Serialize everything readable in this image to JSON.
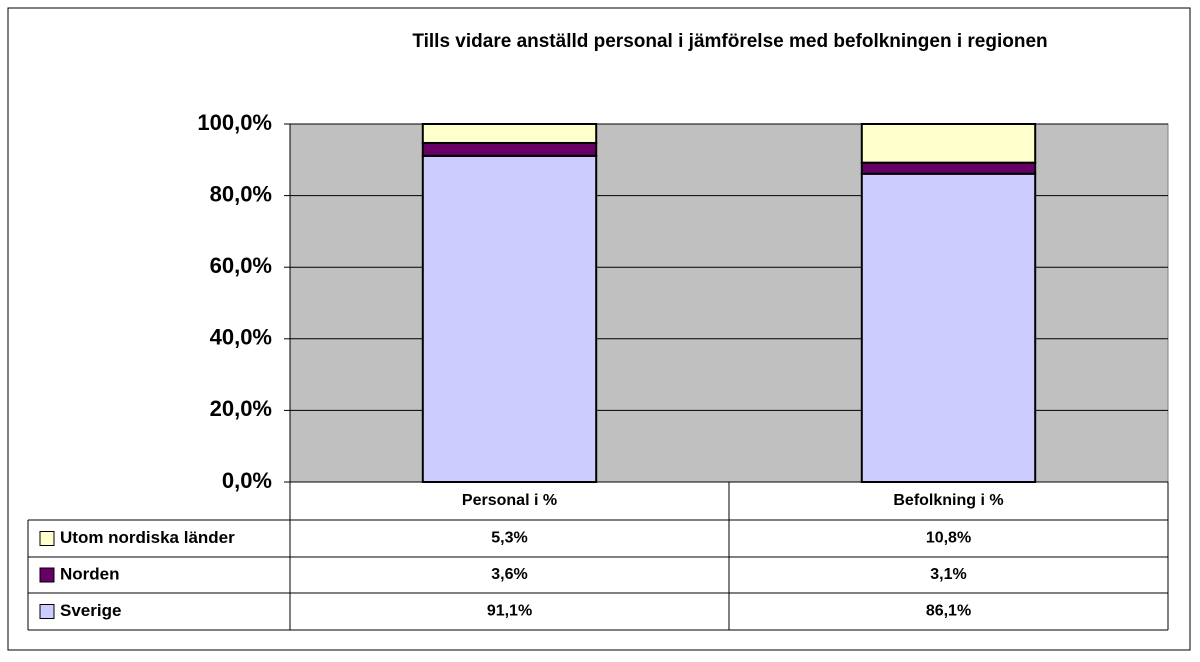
{
  "chart_data": {
    "type": "bar",
    "stacked": true,
    "title": "Tills vidare anställd personal i jämförelse med befolkningen i regionen",
    "categories": [
      "Personal i %",
      "Befolkning i %"
    ],
    "series": [
      {
        "name": "Sverige",
        "color": "#ccccff",
        "values": [
          91.1,
          86.1
        ],
        "value_labels": [
          "91,1%",
          "86,1%"
        ]
      },
      {
        "name": "Norden",
        "color": "#660066",
        "values": [
          3.6,
          3.1
        ],
        "value_labels": [
          "3,6%",
          "3,1%"
        ]
      },
      {
        "name": "Utom nordiska länder",
        "color": "#ffffcc",
        "values": [
          5.3,
          10.8
        ],
        "value_labels": [
          "5,3%",
          "10,8%"
        ]
      }
    ],
    "ylim": [
      0,
      100
    ],
    "yticks": [
      {
        "value": 0,
        "label": "0,0%"
      },
      {
        "value": 20,
        "label": "20,0%"
      },
      {
        "value": 40,
        "label": "40,0%"
      },
      {
        "value": 60,
        "label": "60,0%"
      },
      {
        "value": 80,
        "label": "80,0%"
      },
      {
        "value": 100,
        "label": "100,0%"
      }
    ],
    "grid": true
  }
}
